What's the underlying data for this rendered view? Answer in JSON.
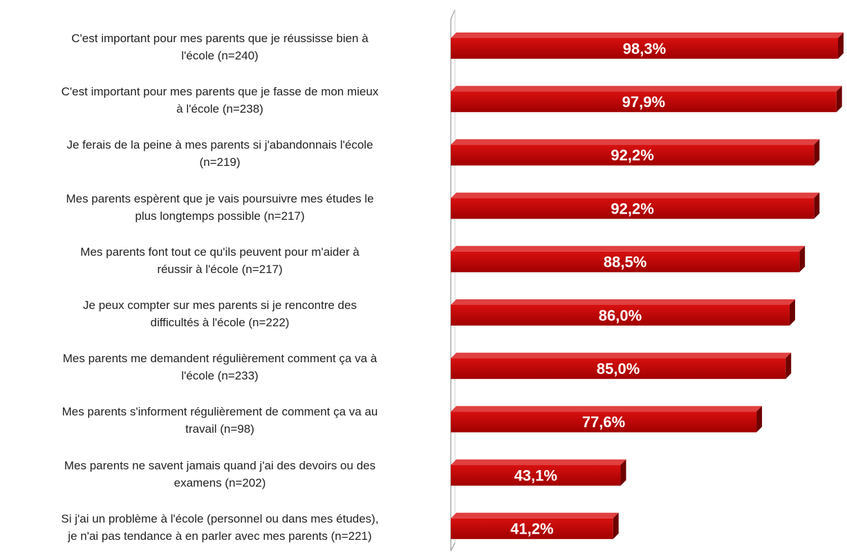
{
  "chart_data": {
    "type": "bar",
    "orientation": "horizontal",
    "color": "#c00000",
    "categories": [
      "C'est important pour mes parents que je réussisse bien à\nl'école (n=240)",
      "C'est important pour mes parents que je fasse de mon mieux\nà l'école (n=238)",
      "Je ferais de la peine à mes parents si j'abandonnais l'école\n(n=219)",
      "Mes parents espèrent que je vais poursuivre mes études le\nplus longtemps possible (n=217)",
      "Mes parents font tout ce qu'ils peuvent pour m'aider à\nréussir à l'école (n=217)",
      "Je peux compter sur mes parents si je rencontre des\ndifficultés à l'école (n=222)",
      "Mes parents me demandent régulièrement comment ça va à\nl'école (n=233)",
      "Mes parents s'informent régulièrement de comment ça va au\ntravail (n=98)",
      "Mes parents ne savent jamais quand j'ai des devoirs ou des\nexamens (n=202)",
      "Si j'ai un problème à l'école (personnel ou dans mes études),\nje n'ai pas tendance à en parler avec mes parents (n=221)"
    ],
    "values": [
      98.3,
      97.9,
      92.2,
      92.2,
      88.5,
      86.0,
      85.0,
      77.6,
      43.1,
      41.2
    ],
    "value_labels": [
      "98,3%",
      "97,9%",
      "92,2%",
      "92,2%",
      "88,5%",
      "86,0%",
      "85,0%",
      "77,6%",
      "43,1%",
      "41,2%"
    ]
  }
}
